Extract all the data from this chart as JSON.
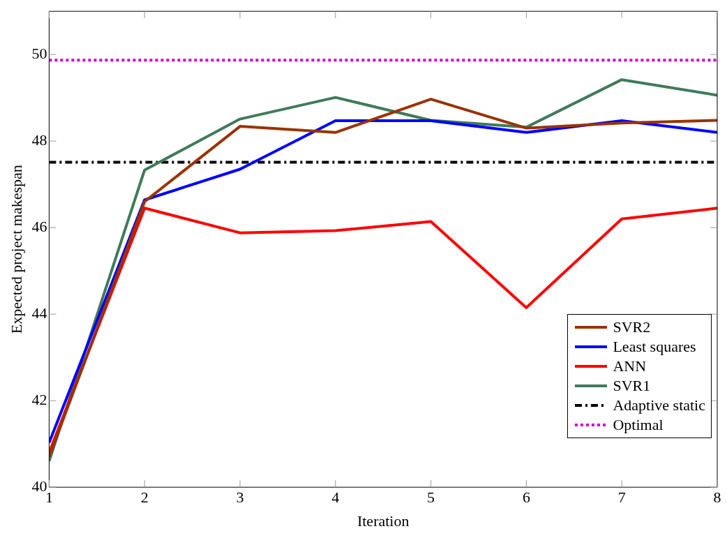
{
  "chart_data": {
    "type": "line",
    "xlabel": "Iteration",
    "ylabel": "Expected project makespan",
    "x": [
      1,
      2,
      3,
      4,
      5,
      6,
      7,
      8
    ],
    "xlim": [
      1,
      8
    ],
    "xticks": [
      1,
      2,
      3,
      4,
      5,
      6,
      7,
      8
    ],
    "ylim": [
      40,
      51
    ],
    "yticks": [
      40,
      42,
      44,
      46,
      48,
      50
    ],
    "grid": false,
    "legend": "bottom right",
    "marker": "none",
    "series": [
      {
        "name": "SVR2",
        "color": "#993300",
        "values": [
          40.7,
          46.6,
          48.34,
          48.2,
          48.97,
          48.3,
          48.42,
          48.48
        ]
      },
      {
        "name": "Least squares",
        "color": "#0000ff",
        "values": [
          41.03,
          46.64,
          47.35,
          48.47,
          48.47,
          48.2,
          48.47,
          48.2
        ]
      },
      {
        "name": "ANN",
        "color": "#ff0000",
        "values": [
          40.8,
          46.45,
          45.88,
          45.93,
          46.14,
          44.15,
          46.2,
          46.45
        ]
      },
      {
        "name": "SVR1",
        "color": "#407a5a",
        "values": [
          40.6,
          47.33,
          48.51,
          49.01,
          48.48,
          48.32,
          49.42,
          49.06
        ]
      },
      {
        "name": "Adaptive static",
        "color": "#000000",
        "line_style": "dashdot",
        "values": [
          47.51,
          47.51,
          47.51,
          47.51,
          47.51,
          47.51,
          47.51,
          47.51
        ]
      },
      {
        "name": "Optimal",
        "color": "#cc00cc",
        "line_style": "dotted",
        "values": [
          49.87,
          49.87,
          49.87,
          49.87,
          49.87,
          49.87,
          49.87,
          49.87
        ]
      }
    ]
  }
}
